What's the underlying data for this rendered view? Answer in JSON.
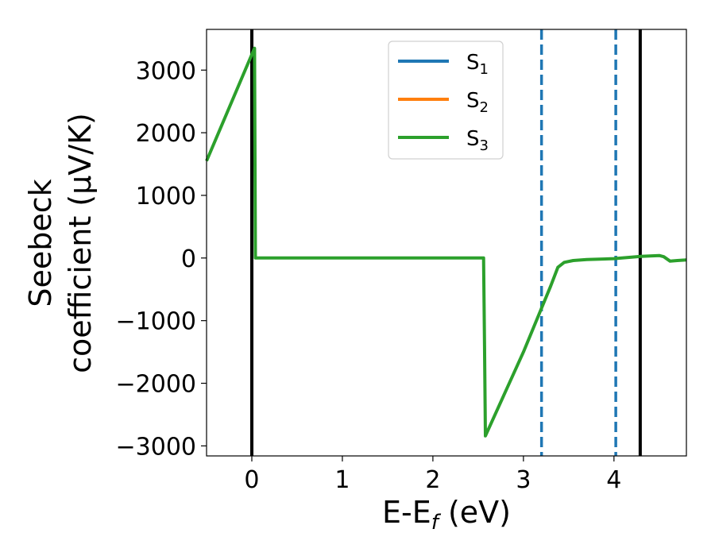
{
  "chart_data": {
    "type": "line",
    "xlabel": {
      "main": "E-E",
      "sub": "f",
      "unit": " (eV)"
    },
    "ylabel": {
      "line1": "Seebeck",
      "line2": "coefficient  (μV/K)"
    },
    "xlim": [
      -0.5,
      4.8
    ],
    "ylim": [
      -3160,
      3650
    ],
    "xticks": [
      0,
      1,
      2,
      3,
      4
    ],
    "xtick_labels": [
      "0",
      "1",
      "2",
      "3",
      "4"
    ],
    "yticks": [
      -3000,
      -2000,
      -1000,
      0,
      1000,
      2000,
      3000
    ],
    "ytick_labels": [
      "−3000",
      "−2000",
      "−1000",
      "0",
      "1000",
      "2000",
      "3000"
    ],
    "legend_position": "top-center",
    "grid": false,
    "series": [
      {
        "name": "S",
        "sub": "1",
        "color": "#1f77b4",
        "x": [],
        "y": []
      },
      {
        "name": "S",
        "sub": "2",
        "color": "#ff7f0e",
        "x": [],
        "y": []
      },
      {
        "name": "S",
        "sub": "3",
        "color": "#2ca02c",
        "x": [
          -0.5,
          0.0,
          0.03,
          0.035,
          0.04,
          1.0,
          2.0,
          2.56,
          2.57,
          2.58,
          3.0,
          3.2,
          3.3,
          3.38,
          3.45,
          3.55,
          3.7,
          4.0,
          4.3,
          4.5,
          4.55,
          4.62,
          4.7,
          4.8
        ],
        "y": [
          1550,
          3250,
          3350,
          1500,
          0,
          0,
          0,
          0,
          -1400,
          -2840,
          -1500,
          -800,
          -450,
          -150,
          -70,
          -40,
          -25,
          -10,
          25,
          40,
          20,
          -50,
          -40,
          -30
        ]
      }
    ],
    "vertical_lines": [
      {
        "x": 0.0,
        "color": "#000000",
        "style": "solid"
      },
      {
        "x": 4.29,
        "color": "#000000",
        "style": "solid"
      },
      {
        "x": 3.2,
        "color": "#1f77b4",
        "style": "dashed"
      },
      {
        "x": 4.02,
        "color": "#1f77b4",
        "style": "dashed"
      }
    ]
  }
}
